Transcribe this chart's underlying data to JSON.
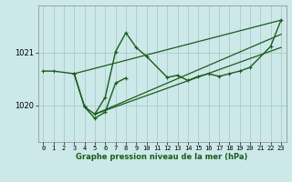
{
  "title": "Graphe pression niveau de la mer (hPa)",
  "background_color": "#cce8e8",
  "grid_color": "#aacccc",
  "line_color": "#1a5c1a",
  "x_labels": [
    "0",
    "1",
    "2",
    "3",
    "4",
    "5",
    "6",
    "7",
    "8",
    "9",
    "10",
    "11",
    "12",
    "13",
    "14",
    "15",
    "16",
    "17",
    "18",
    "19",
    "20",
    "21",
    "22",
    "23"
  ],
  "xlim": [
    -0.5,
    23.5
  ],
  "ylim": [
    1019.3,
    1021.9
  ],
  "yticks": [
    1020,
    1021
  ],
  "series": [
    {
      "x": [
        0,
        1,
        3,
        4,
        5,
        6,
        7,
        8,
        9,
        10,
        12,
        13,
        14,
        15,
        16,
        17,
        18,
        19,
        20,
        22,
        23
      ],
      "y": [
        1020.65,
        1020.65,
        1020.6,
        1019.97,
        1019.83,
        1020.15,
        1021.02,
        1021.38,
        1021.1,
        1020.93,
        1020.53,
        1020.57,
        1020.47,
        1020.55,
        1020.6,
        1020.55,
        1020.6,
        1020.65,
        1020.72,
        1021.12,
        1021.62
      ],
      "with_markers": true
    },
    {
      "x": [
        3,
        4,
        5,
        6,
        7,
        8
      ],
      "y": [
        1020.6,
        1019.97,
        1019.75,
        1019.87,
        1020.42,
        1020.52
      ],
      "with_markers": true
    },
    {
      "x": [
        3,
        23
      ],
      "y": [
        1020.6,
        1021.62
      ],
      "with_markers": false,
      "linewidth": 0.9
    },
    {
      "x": [
        5,
        23
      ],
      "y": [
        1019.83,
        1021.35
      ],
      "with_markers": false,
      "linewidth": 0.9
    },
    {
      "x": [
        5,
        23
      ],
      "y": [
        1019.83,
        1021.1
      ],
      "with_markers": false,
      "linewidth": 0.9
    }
  ],
  "figsize": [
    3.2,
    2.0
  ],
  "dpi": 100,
  "title_fontsize": 6,
  "tick_fontsize": 5,
  "ytick_fontsize": 6
}
